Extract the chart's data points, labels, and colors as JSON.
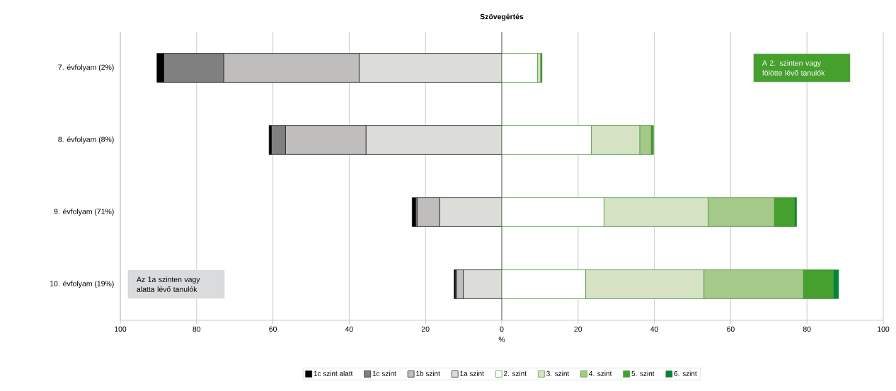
{
  "chart_data": {
    "type": "bar",
    "orientation": "horizontal",
    "stacked": true,
    "title": "Szövegértés",
    "xlabel": "%",
    "categories": [
      "7. évfolyam (2%)",
      "8. évfolyam (8%)",
      "9. évfolyam (71%)",
      "10. évfolyam (19%)"
    ],
    "series": [
      {
        "name": "1a szint",
        "color": "#dcdcd8",
        "values": [
          -37.4,
          -35.6,
          -16.3,
          -10.1
        ]
      },
      {
        "name": "1b szint",
        "color": "#bfbebd",
        "values": [
          -35.5,
          -21.1,
          -5.9,
          -1.8
        ]
      },
      {
        "name": "1c szint",
        "color": "#808080",
        "values": [
          -15.7,
          -3.7,
          -0.4,
          -0.3
        ]
      },
      {
        "name": "1c szint alatt",
        "color": "#000000",
        "values": [
          -1.8,
          -0.6,
          -0.9,
          -0.3
        ]
      },
      {
        "name": "2. szint",
        "color": "#ffffff",
        "values": [
          9.4,
          23.5,
          26.8,
          22.0
        ]
      },
      {
        "name": "3. szint",
        "color": "#d5e3c4",
        "values": [
          0.8,
          12.7,
          27.3,
          31.0
        ]
      },
      {
        "name": "4. szint",
        "color": "#a5c988",
        "values": [
          0.2,
          3.0,
          17.4,
          26.1
        ]
      },
      {
        "name": "5. szint",
        "color": "#45a02e",
        "values": [
          0.1,
          0.5,
          5.3,
          7.9
        ]
      },
      {
        "name": "6. szint",
        "color": "#00843d",
        "values": [
          0.0,
          0.0,
          0.5,
          1.3
        ]
      }
    ],
    "xlim": [
      -100,
      100
    ],
    "xticks": [
      {
        "value": -100,
        "label": "100"
      },
      {
        "value": -80,
        "label": "80"
      },
      {
        "value": -60,
        "label": "60"
      },
      {
        "value": -40,
        "label": "40"
      },
      {
        "value": -20,
        "label": "20"
      },
      0,
      20,
      40,
      60,
      80,
      100
    ],
    "grid": "x",
    "legend": "bottom",
    "annotations": [
      "Az 1a szinten vagy alatta lévő tanulók",
      "A 2. szinten vagy fölötte lévő tanulók"
    ]
  }
}
